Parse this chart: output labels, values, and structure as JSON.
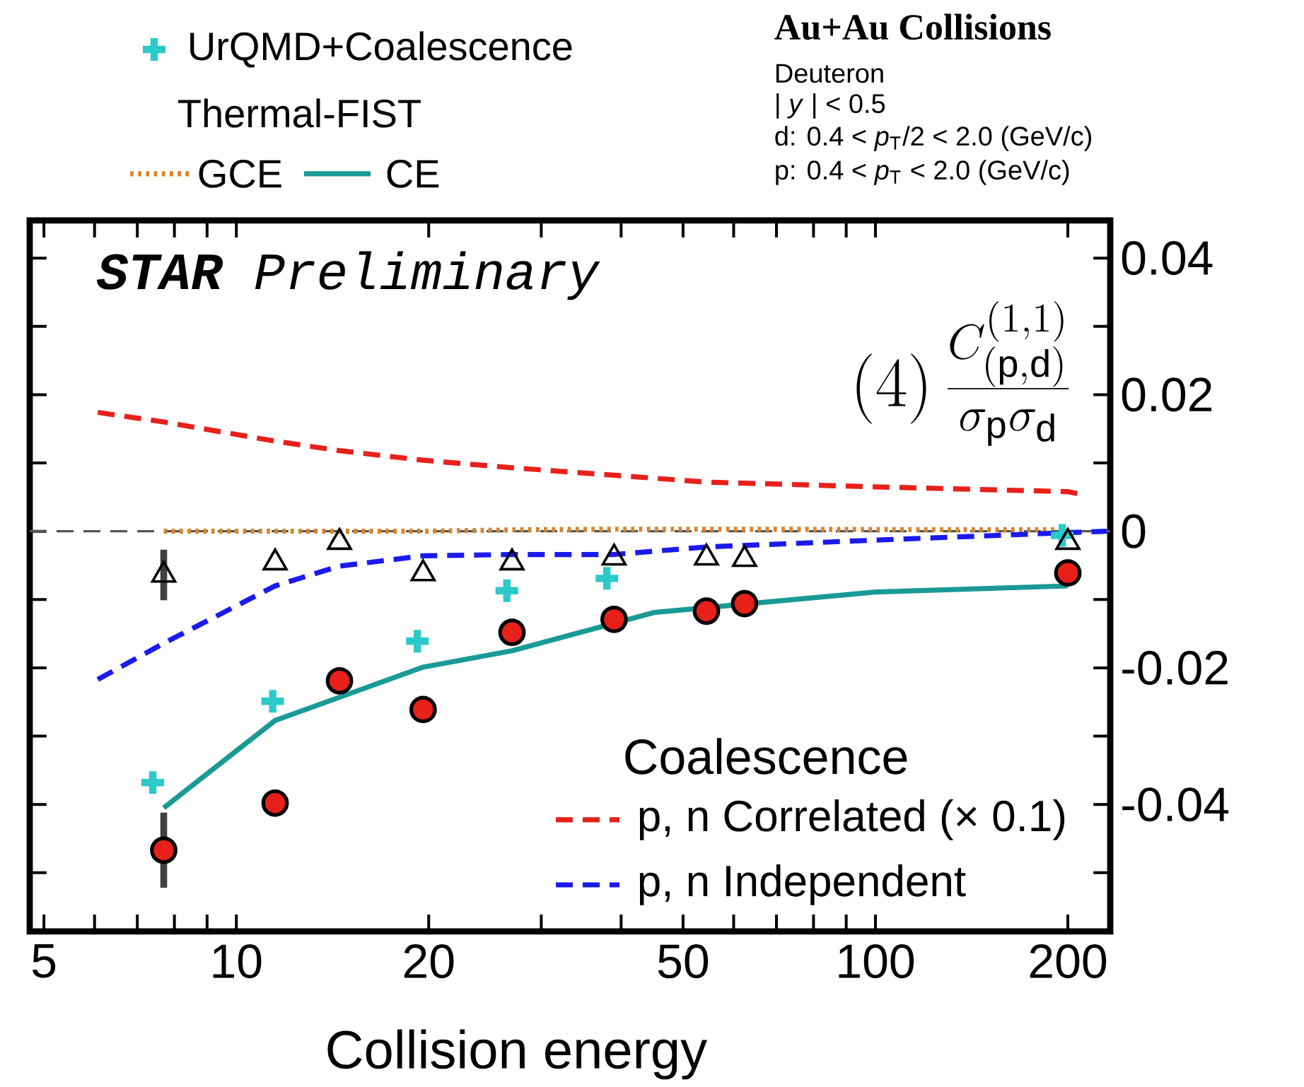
{
  "chart_data": {
    "type": "line",
    "title": "Au+Au Collisions",
    "xlabel": "Collision energy",
    "ylabel": "(4)\\,\\frac{C^{(1,1)}_{(\\mathrm{p,d})}}{\\sigma_{\\mathrm{p}}\\sigma_{\\mathrm{d}}}",
    "legend_title": "Coalescence",
    "annotations": [
      "**STAR** Preliminary",
      "Thermal-FIST",
      "Deuteron",
      "| *y* | < 0.5",
      "d: 0.4 < *p*$_{T}$/2 < 2.0 (GeV/c)",
      "p: 0.4 < *p*$_{T}$ < 2.0 (GeV/c)"
    ],
    "log": "x",
    "legend": "top left",
    "grid": false,
    "xlim": [
      4.75,
      233
    ],
    "ylim": [
      -0.0586,
      0.0455
    ],
    "xticks": [
      5,
      {
        "value": 6,
        "label": null
      },
      {
        "value": 7,
        "label": null
      },
      {
        "value": 8,
        "label": null
      },
      {
        "value": 9,
        "label": null
      },
      10,
      20,
      {
        "value": 30,
        "label": null
      },
      {
        "value": 40,
        "label": null
      },
      50,
      {
        "value": 60,
        "label": null
      },
      {
        "value": 70,
        "label": null
      },
      {
        "value": 80,
        "label": null
      },
      {
        "value": 90,
        "label": null
      },
      100,
      200
    ],
    "yticks": [
      {
        "value": -0.05,
        "label": null
      },
      -0.04,
      {
        "value": -0.03,
        "label": null
      },
      -0.02,
      {
        "value": -0.01,
        "label": null
      },
      0,
      {
        "value": 0.01,
        "label": null
      },
      0.02,
      {
        "value": 0.03,
        "label": null
      },
      0.04
    ],
    "ref_lines": [
      {
        "axis": "y",
        "value": 0,
        "color": "#555555",
        "line_style": "dashed"
      }
    ],
    "series": [
      {
        "name": "UrQMD+Coalescence",
        "type": "scatter",
        "marker": "cross",
        "color": "#2cc9c9",
        "x": [
          7.4,
          11.4,
          19.2,
          26.5,
          38,
          196
        ],
        "values": [
          -0.0368,
          -0.0249,
          -0.0161,
          -0.0087,
          -0.0069,
          -0.0006
        ]
      },
      {
        "name": "GCE",
        "line_style": "dotted",
        "color": "#d4862c",
        "x": [
          7.7,
          11.5,
          14.5,
          19.6,
          27,
          39,
          54.4,
          62.4,
          200
        ],
        "values": [
          0,
          0,
          0,
          0,
          0.0002,
          0.0003,
          0.0003,
          0.0003,
          0.0002
        ]
      },
      {
        "name": "CE",
        "line_style": "solid",
        "color": "#1a9a96",
        "x": [
          7.7,
          11.5,
          19.6,
          27,
          45,
          100,
          200
        ],
        "values": [
          -0.0405,
          -0.0277,
          -0.0199,
          -0.0175,
          -0.0119,
          -0.0089,
          -0.008
        ]
      },
      {
        "name": "p, n Correlated (× 0.1)",
        "line_style": "dashed",
        "color": "#e8201a",
        "x": [
          6.07,
          7.7,
          11.5,
          14.5,
          19.6,
          27,
          39,
          54.4,
          100,
          200,
          212
        ],
        "values": [
          0.0174,
          0.016,
          0.0132,
          0.0118,
          0.0104,
          0.0093,
          0.0082,
          0.0072,
          0.0065,
          0.0058,
          0.0053
        ]
      },
      {
        "name": "p, n Independent",
        "line_style": "dashed",
        "color": "#1a1aee",
        "x": [
          6.07,
          7.7,
          11.5,
          14.5,
          19.6,
          27,
          39,
          54.4,
          100,
          200,
          230
        ],
        "values": [
          -0.0217,
          -0.0164,
          -0.008,
          -0.0051,
          -0.0036,
          -0.0034,
          -0.0034,
          -0.0023,
          -0.0013,
          -0.0002,
          0
        ]
      },
      {
        "type": "scatter",
        "marker": "triangle",
        "color": "#000000",
        "x": [
          7.7,
          11.5,
          14.5,
          19.6,
          27,
          39,
          54.4,
          62.4,
          200
        ],
        "values": [
          -0.0064,
          -0.0046,
          -0.0016,
          -0.0062,
          -0.0046,
          -0.0039,
          -0.0039,
          -0.0041,
          -0.0016
        ],
        "errors": [
          0.0037,
          null,
          null,
          null,
          null,
          null,
          null,
          null,
          null
        ]
      },
      {
        "type": "scatter",
        "marker": "circle",
        "color": "#e8201a",
        "x": [
          7.7,
          11.5,
          14.5,
          19.6,
          27,
          39,
          54.4,
          62.4,
          200
        ],
        "values": [
          -0.0467,
          -0.0398,
          -0.0219,
          -0.0261,
          -0.0148,
          -0.0129,
          -0.0117,
          -0.0106,
          -0.0061
        ],
        "errors": [
          0.0055,
          null,
          null,
          null,
          null,
          null,
          null,
          null,
          null
        ]
      }
    ]
  }
}
